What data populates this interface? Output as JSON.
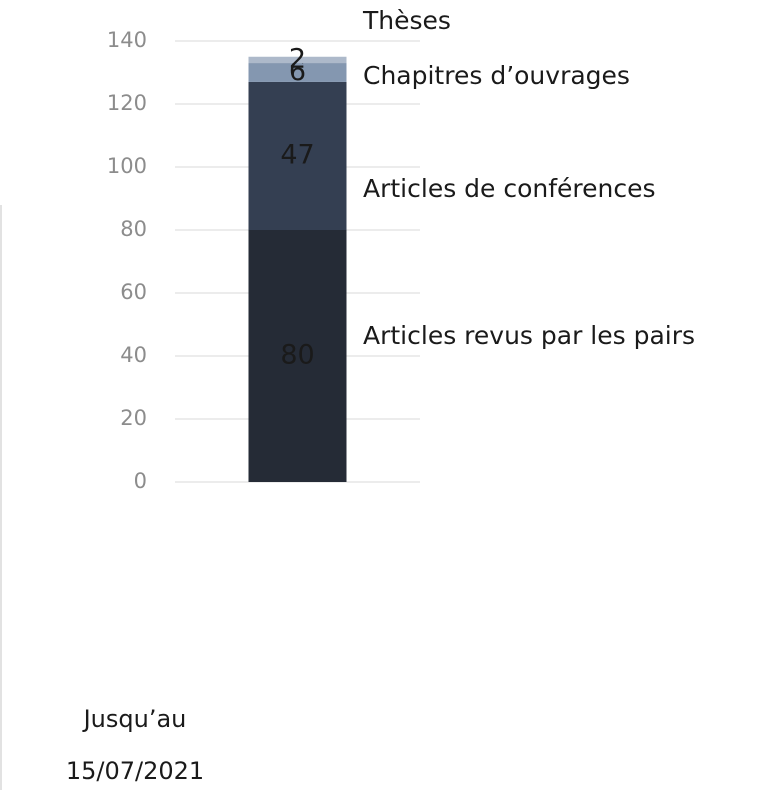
{
  "chart_data": {
    "type": "stacked_bar",
    "categories": [
      "Jusqu’au 15/07/2021"
    ],
    "series": [
      {
        "name": "Articles revus par les pairs",
        "color": "#252b36",
        "values": [
          80
        ]
      },
      {
        "name": "Articles de conférences",
        "color": "#343f52",
        "values": [
          47
        ]
      },
      {
        "name": "Chapitres d’ouvrages",
        "color": "#8497b0",
        "values": [
          6
        ]
      },
      {
        "name": "Thèses",
        "color": "#adb9ca",
        "values": [
          2
        ]
      }
    ],
    "ylim": [
      0,
      140
    ],
    "yticks": [
      0,
      20,
      40,
      60,
      80,
      100,
      120,
      140
    ],
    "grid": true
  }
}
